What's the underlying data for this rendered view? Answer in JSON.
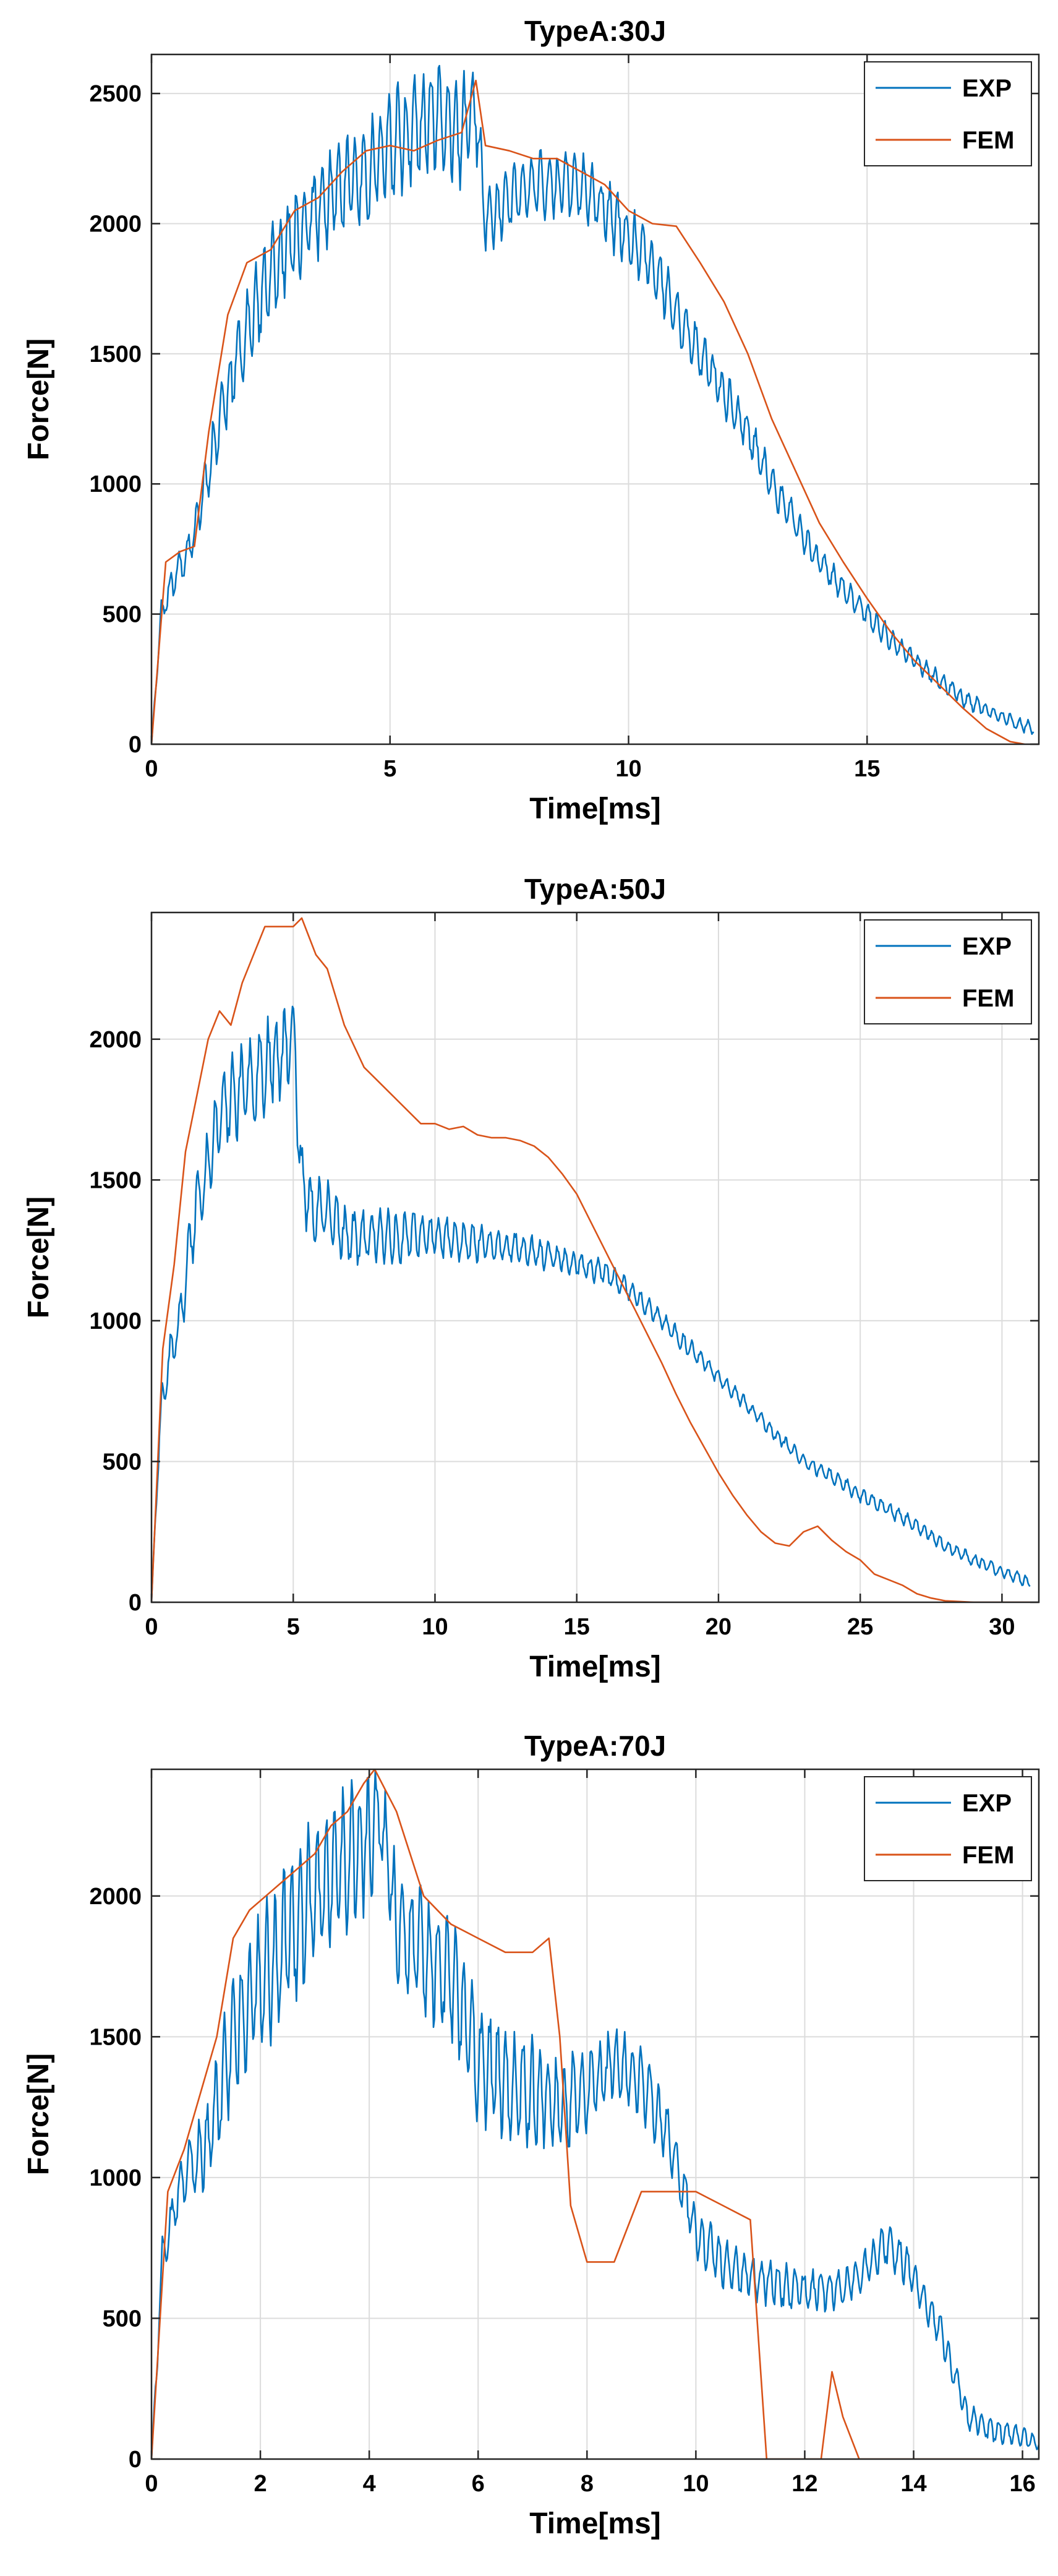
{
  "chart_data": [
    {
      "type": "line",
      "title": "TypeA:30J",
      "xlabel": "Time[ms]",
      "ylabel": "Force[N]",
      "xlim": [
        0,
        18.6
      ],
      "ylim": [
        0,
        2650
      ],
      "xticks": [
        0,
        5,
        10,
        15
      ],
      "yticks": [
        0,
        500,
        1000,
        1500,
        2000,
        2500
      ],
      "grid": true,
      "legend_location": "top-right",
      "series": [
        {
          "name": "EXP",
          "color": "#0072BD",
          "noisy": true,
          "seed": 11,
          "x": [
            0,
            0.2,
            0.5,
            0.8,
            1.0,
            1.5,
            2.0,
            2.5,
            3.0,
            3.5,
            4.0,
            4.5,
            5.0,
            5.5,
            6.0,
            6.5,
            6.8,
            7.0,
            7.5,
            8.0,
            8.5,
            9.0,
            9.5,
            10.0,
            10.5,
            11.0,
            11.5,
            12.0,
            12.5,
            13.0,
            13.5,
            14.0,
            14.5,
            15.0,
            15.5,
            16.0,
            16.5,
            17.0,
            17.5,
            18.0,
            18.5
          ],
          "y": [
            0,
            500,
            650,
            750,
            900,
            1300,
            1600,
            1800,
            1950,
            2050,
            2150,
            2200,
            2300,
            2350,
            2400,
            2350,
            2450,
            2000,
            2100,
            2150,
            2150,
            2150,
            2050,
            1950,
            1850,
            1650,
            1500,
            1350,
            1200,
            1000,
            850,
            700,
            600,
            500,
            400,
            320,
            250,
            180,
            130,
            90,
            60
          ],
          "amp": [
            0,
            60,
            80,
            80,
            100,
            150,
            180,
            200,
            200,
            200,
            200,
            220,
            230,
            230,
            230,
            230,
            200,
            150,
            150,
            150,
            150,
            140,
            140,
            130,
            130,
            120,
            110,
            100,
            90,
            80,
            70,
            60,
            60,
            50,
            50,
            40,
            40,
            40,
            30,
            30,
            30
          ]
        },
        {
          "name": "FEM",
          "color": "#D95319",
          "noisy": false,
          "x": [
            0,
            0.3,
            0.6,
            0.9,
            1.2,
            1.6,
            2.0,
            2.5,
            3.0,
            3.5,
            4.0,
            4.5,
            5.0,
            5.5,
            6.0,
            6.5,
            6.8,
            7.0,
            7.5,
            8.0,
            8.5,
            9.0,
            9.5,
            10.0,
            10.5,
            11.0,
            11.5,
            12.0,
            12.5,
            13.0,
            13.5,
            14.0,
            14.5,
            15.0,
            15.5,
            16.0,
            16.5,
            17.0,
            17.5,
            18.0,
            18.3
          ],
          "y": [
            0,
            700,
            740,
            760,
            1200,
            1650,
            1850,
            1900,
            2050,
            2100,
            2200,
            2280,
            2300,
            2280,
            2320,
            2350,
            2550,
            2300,
            2280,
            2250,
            2250,
            2200,
            2150,
            2050,
            2000,
            1990,
            1850,
            1700,
            1500,
            1250,
            1050,
            850,
            700,
            560,
            430,
            320,
            230,
            140,
            60,
            10,
            0
          ]
        }
      ]
    },
    {
      "type": "line",
      "title": "TypeA:50J",
      "xlabel": "Time[ms]",
      "ylabel": "Force[N]",
      "xlim": [
        0,
        31.3
      ],
      "ylim": [
        0,
        2450
      ],
      "xticks": [
        0,
        5,
        10,
        15,
        20,
        25,
        30
      ],
      "yticks": [
        0,
        500,
        1000,
        1500,
        2000
      ],
      "grid": true,
      "legend_location": "top-right",
      "series": [
        {
          "name": "EXP",
          "color": "#0072BD",
          "noisy": true,
          "seed": 23,
          "x": [
            0,
            0.3,
            0.6,
            1.0,
            1.5,
            2.0,
            2.5,
            3.0,
            3.5,
            4.0,
            4.5,
            5.0,
            5.3,
            5.6,
            6.0,
            7.0,
            8.0,
            9.0,
            10.0,
            11.0,
            12.0,
            13.0,
            14.0,
            15.0,
            16.0,
            17.0,
            18.0,
            19.0,
            20.0,
            21.0,
            22.0,
            23.0,
            24.0,
            25.0,
            26.0,
            27.0,
            28.0,
            29.0,
            30.0,
            31.0
          ],
          "y": [
            0,
            650,
            850,
            1000,
            1350,
            1550,
            1750,
            1800,
            1850,
            1900,
            1950,
            2000,
            1500,
            1400,
            1400,
            1300,
            1300,
            1300,
            1300,
            1280,
            1270,
            1260,
            1230,
            1200,
            1170,
            1100,
            1000,
            900,
            800,
            700,
            600,
            500,
            450,
            380,
            330,
            270,
            200,
            150,
            110,
            70
          ],
          "amp": [
            0,
            80,
            80,
            100,
            140,
            150,
            170,
            170,
            170,
            180,
            180,
            180,
            140,
            130,
            130,
            120,
            110,
            100,
            90,
            80,
            70,
            60,
            60,
            50,
            50,
            40,
            40,
            40,
            30,
            30,
            30,
            30,
            30,
            30,
            30,
            30,
            25,
            25,
            25,
            25
          ]
        },
        {
          "name": "FEM",
          "color": "#D95319",
          "noisy": false,
          "x": [
            0,
            0.4,
            0.8,
            1.2,
            1.6,
            2.0,
            2.4,
            2.8,
            3.2,
            3.6,
            4.0,
            4.5,
            5.0,
            5.3,
            5.8,
            6.2,
            6.8,
            7.5,
            8.0,
            8.5,
            9.0,
            9.5,
            10.0,
            10.5,
            11.0,
            11.5,
            12.0,
            12.5,
            13.0,
            13.5,
            14.0,
            14.5,
            15.0,
            15.5,
            16.0,
            16.5,
            17.0,
            17.5,
            18.0,
            18.5,
            19.0,
            19.5,
            20.0,
            20.5,
            21.0,
            21.5,
            22.0,
            22.5,
            23.0,
            23.5,
            24.0,
            24.5,
            25.0,
            25.5,
            26.0,
            26.5,
            27.0,
            27.5,
            28.0,
            29.0,
            30.0,
            31.0
          ],
          "y": [
            0,
            900,
            1200,
            1600,
            1800,
            2000,
            2100,
            2050,
            2200,
            2300,
            2400,
            2400,
            2400,
            2430,
            2300,
            2250,
            2050,
            1900,
            1850,
            1800,
            1750,
            1700,
            1700,
            1680,
            1690,
            1660,
            1650,
            1650,
            1640,
            1620,
            1580,
            1520,
            1450,
            1350,
            1250,
            1150,
            1050,
            950,
            850,
            740,
            640,
            550,
            460,
            380,
            310,
            250,
            210,
            200,
            250,
            270,
            220,
            180,
            150,
            100,
            80,
            60,
            30,
            15,
            5,
            0,
            0,
            0
          ]
        }
      ]
    },
    {
      "type": "line",
      "title": "TypeA:70J",
      "xlabel": "Time[ms]",
      "ylabel": "Force[N]",
      "xlim": [
        0,
        16.3
      ],
      "ylim": [
        0,
        2450
      ],
      "xticks": [
        0,
        2,
        4,
        6,
        8,
        10,
        12,
        14,
        16
      ],
      "yticks": [
        0,
        500,
        1000,
        1500,
        2000
      ],
      "grid": true,
      "legend_location": "top-right",
      "series": [
        {
          "name": "EXP",
          "color": "#0072BD",
          "noisy": true,
          "seed": 37,
          "x": [
            0,
            0.2,
            0.5,
            0.8,
            1.0,
            1.5,
            2.0,
            2.5,
            3.0,
            3.5,
            4.0,
            4.2,
            4.5,
            5.0,
            5.5,
            6.0,
            6.5,
            7.0,
            7.5,
            8.0,
            8.5,
            9.0,
            9.5,
            10.0,
            10.5,
            11.0,
            11.5,
            12.0,
            12.5,
            13.0,
            13.5,
            14.0,
            14.5,
            15.0,
            15.5,
            16.0,
            16.3
          ],
          "y": [
            0,
            700,
            950,
            1050,
            1100,
            1500,
            1700,
            1850,
            2000,
            2100,
            2200,
            2300,
            1900,
            1800,
            1700,
            1400,
            1350,
            1300,
            1250,
            1300,
            1400,
            1350,
            1150,
            800,
            700,
            650,
            620,
            600,
            600,
            650,
            780,
            650,
            450,
            150,
            100,
            80,
            50
          ],
          "amp": [
            0,
            100,
            120,
            150,
            160,
            250,
            300,
            300,
            300,
            300,
            250,
            200,
            250,
            250,
            250,
            250,
            230,
            230,
            200,
            180,
            150,
            150,
            120,
            100,
            100,
            90,
            90,
            80,
            80,
            80,
            100,
            80,
            70,
            50,
            50,
            40,
            30
          ]
        },
        {
          "name": "FEM",
          "color": "#D95319",
          "noisy": false,
          "x": [
            0,
            0.3,
            0.6,
            0.9,
            1.2,
            1.5,
            1.8,
            2.1,
            2.4,
            2.7,
            3.0,
            3.3,
            3.6,
            3.9,
            4.1,
            4.5,
            5.0,
            5.5,
            6.0,
            6.5,
            7.0,
            7.3,
            7.5,
            7.7,
            8.0,
            8.5,
            9.0,
            9.5,
            10.0,
            10.5,
            11.0,
            11.3,
            11.5,
            12.0,
            12.3,
            12.5,
            12.7,
            13.0,
            13.5,
            14.0,
            15.0,
            16.0
          ],
          "y": [
            0,
            950,
            1100,
            1300,
            1500,
            1850,
            1950,
            2000,
            2050,
            2100,
            2150,
            2250,
            2300,
            2400,
            2450,
            2300,
            2000,
            1900,
            1850,
            1800,
            1800,
            1850,
            1500,
            900,
            700,
            700,
            950,
            950,
            950,
            900,
            850,
            0,
            0,
            0,
            0,
            310,
            150,
            0,
            0,
            0,
            0,
            0
          ]
        }
      ]
    }
  ]
}
